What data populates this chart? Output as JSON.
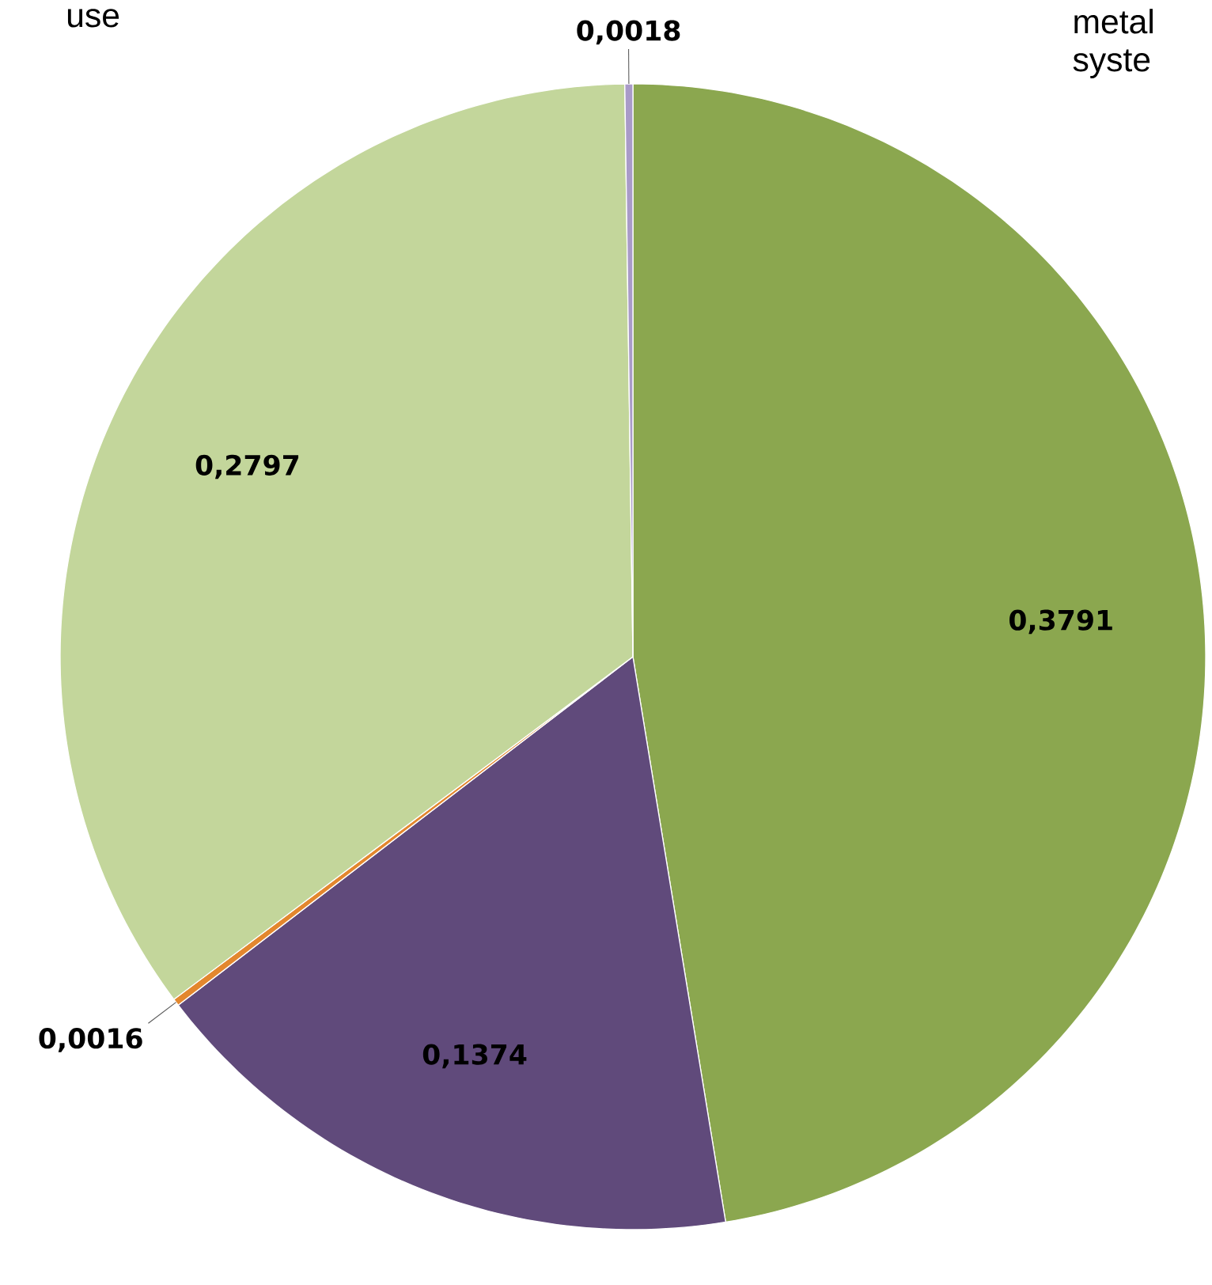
{
  "chart_data": {
    "type": "pie",
    "categories": [
      null,
      null,
      null,
      null,
      null
    ],
    "values": [
      0.3791,
      0.1374,
      0.0016,
      0.2797,
      0.0018
    ],
    "colors": [
      "#8ba74f",
      "#604a7b",
      "#e3872e",
      "#c3d69b",
      "#a99bc8"
    ],
    "value_labels": [
      "0,3791",
      "0,1374",
      "0,0016",
      "0,2797",
      "0,0018"
    ],
    "annotations": [
      "use",
      "metal syste"
    ]
  }
}
